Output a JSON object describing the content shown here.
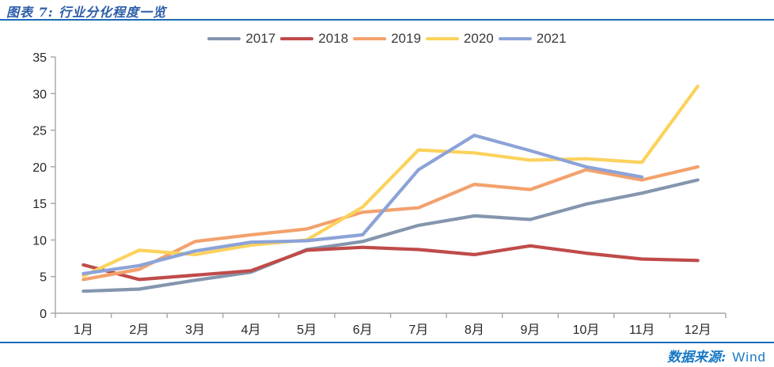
{
  "header": {
    "title": "图表 7: 行业分化程度一览"
  },
  "footer": {
    "source_label": "数据来源:",
    "source_value": "Wind"
  },
  "colors": {
    "rule_blue": "#1b6ab5",
    "title_blue": "#2b5ca8",
    "source_blue": "#1878c4",
    "axis_gray": "#a6a6a6"
  },
  "chart_data": {
    "type": "line",
    "title": "图表 7: 行业分化程度一览",
    "xlabel": "",
    "ylabel": "",
    "categories": [
      "1月",
      "2月",
      "3月",
      "4月",
      "5月",
      "6月",
      "7月",
      "8月",
      "9月",
      "10月",
      "11月",
      "12月"
    ],
    "yticks": [
      0,
      5,
      10,
      15,
      20,
      25,
      30,
      35
    ],
    "ylim": [
      0,
      35
    ],
    "grid": false,
    "legend_position": "top-center",
    "series": [
      {
        "name": "2017",
        "color": "#8496ae",
        "values": [
          3.0,
          3.3,
          4.5,
          5.6,
          8.7,
          9.8,
          12.0,
          13.3,
          12.8,
          14.9,
          16.4,
          18.2
        ]
      },
      {
        "name": "2018",
        "color": "#bf4b49",
        "values": [
          6.6,
          4.6,
          5.2,
          5.8,
          8.6,
          9.0,
          8.7,
          8.0,
          9.2,
          8.2,
          7.4,
          7.2
        ]
      },
      {
        "name": "2019",
        "color": "#f3a16d",
        "values": [
          4.6,
          6.0,
          9.8,
          10.7,
          11.5,
          13.8,
          14.4,
          17.6,
          16.9,
          19.6,
          18.2,
          20.0
        ]
      },
      {
        "name": "2020",
        "color": "#fcd25c",
        "values": [
          5.1,
          8.6,
          8.0,
          9.3,
          10.0,
          14.5,
          22.3,
          21.9,
          20.9,
          21.1,
          20.6,
          31.0
        ]
      },
      {
        "name": "2021",
        "color": "#8ca3d8",
        "values": [
          5.4,
          6.5,
          8.5,
          9.7,
          9.9,
          10.7,
          19.6,
          24.3,
          22.2,
          20.0,
          18.6,
          null
        ]
      }
    ]
  }
}
